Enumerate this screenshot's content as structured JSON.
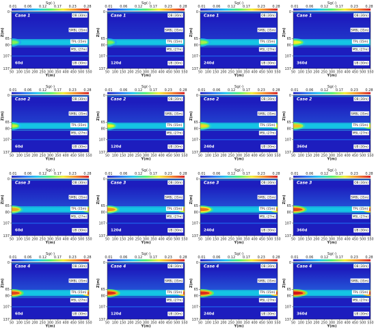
{
  "chart_data": {
    "type": "heatmap",
    "colorbar": {
      "label": "Sg(-)",
      "ticks": [
        "0.01",
        "0.06",
        "0.12",
        "0.17",
        "0.23",
        "0.28"
      ],
      "range": [
        0.01,
        0.28
      ],
      "colors": [
        "#1d1dbe",
        "#1f6ff2",
        "#19c4ee",
        "#4cf06a",
        "#f2ef2a",
        "#f3821d",
        "#d4141b"
      ]
    },
    "xlabel": "Y(m)",
    "ylabel": "Z(m)",
    "xticks": [
      "50",
      "100",
      "150",
      "200",
      "250",
      "300",
      "350",
      "400",
      "450",
      "500",
      "550"
    ],
    "yticks": [
      "0",
      "65",
      "80",
      "107",
      "137"
    ],
    "xlim": [
      50,
      550
    ],
    "ylim": [
      0,
      137
    ],
    "layers": [
      {
        "label": "OB (30m)",
        "z": 9
      },
      {
        "label": "SMBL (35m)",
        "z": 44
      },
      {
        "label": "TPL (15m)",
        "z": 72
      },
      {
        "label": "MSL (27m)",
        "z": 91
      },
      {
        "label": "UB (30m)",
        "z": 124
      }
    ],
    "panels": [
      {
        "case": "Case 1",
        "time": "60d",
        "extent": 0.1,
        "sg_peak": 0.16,
        "diffuse": 0.2
      },
      {
        "case": "Case 1",
        "time": "120d",
        "extent": 0.1,
        "sg_peak": 0.16,
        "diffuse": 0.22
      },
      {
        "case": "Case 1",
        "time": "240d",
        "extent": 0.11,
        "sg_peak": 0.17,
        "diffuse": 0.22
      },
      {
        "case": "Case 1",
        "time": "360d",
        "extent": 0.13,
        "sg_peak": 0.19,
        "diffuse": 0.22
      },
      {
        "case": "Case 2",
        "time": "60d",
        "extent": 0.1,
        "sg_peak": 0.18,
        "diffuse": 0.3
      },
      {
        "case": "Case 2",
        "time": "120d",
        "extent": 0.11,
        "sg_peak": 0.19,
        "diffuse": 0.32
      },
      {
        "case": "Case 2",
        "time": "240d",
        "extent": 0.12,
        "sg_peak": 0.2,
        "diffuse": 0.32
      },
      {
        "case": "Case 2",
        "time": "360d",
        "extent": 0.13,
        "sg_peak": 0.21,
        "diffuse": 0.34
      },
      {
        "case": "Case 3",
        "time": "60d",
        "extent": 0.12,
        "sg_peak": 0.22,
        "diffuse": 0.36
      },
      {
        "case": "Case 3",
        "time": "120d",
        "extent": 0.13,
        "sg_peak": 0.23,
        "diffuse": 0.4
      },
      {
        "case": "Case 3",
        "time": "240d",
        "extent": 0.14,
        "sg_peak": 0.24,
        "diffuse": 0.42
      },
      {
        "case": "Case 3",
        "time": "360d",
        "extent": 0.15,
        "sg_peak": 0.26,
        "diffuse": 0.44
      },
      {
        "case": "Case 4",
        "time": "60d",
        "extent": 0.13,
        "sg_peak": 0.26,
        "diffuse": 0.42
      },
      {
        "case": "Case 4",
        "time": "120d",
        "extent": 0.14,
        "sg_peak": 0.27,
        "diffuse": 0.46
      },
      {
        "case": "Case 4",
        "time": "240d",
        "extent": 0.15,
        "sg_peak": 0.27,
        "diffuse": 0.48
      },
      {
        "case": "Case 4",
        "time": "360d",
        "extent": 0.16,
        "sg_peak": 0.28,
        "diffuse": 0.5
      }
    ]
  }
}
